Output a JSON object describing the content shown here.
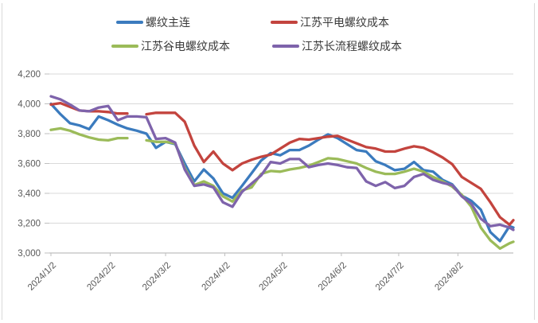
{
  "chart": {
    "background": "#FFFFFF",
    "grid_color": "#D9D9D9",
    "axis_color": "#BFBFBF",
    "frame_color": "#D9D9D9",
    "tick_label_color": "#595959",
    "legend_text_color": "#3A3A3A"
  },
  "chart_data": {
    "type": "line",
    "title": "",
    "xlabel": "",
    "ylabel": "",
    "legend_position": "top",
    "grid": "horizontal",
    "ylim": [
      3000,
      4200
    ],
    "y_ticks": [
      3000,
      3200,
      3400,
      3600,
      3800,
      4000,
      4200
    ],
    "y_tick_labels": [
      "3,000",
      "3,200",
      "3,400",
      "3,600",
      "3,800",
      "4,000",
      "4,200"
    ],
    "x_tick_labels": [
      "2024/1/2",
      "2024/2/2",
      "2024/3/2",
      "2024/4/2",
      "2024/5/2",
      "2024/6/2",
      "2024/7/2",
      "2024/8/2"
    ],
    "x_range": [
      "2024/1/2",
      "2024/8/31"
    ],
    "x": [
      "2024/1/2",
      "2024/1/7",
      "2024/1/12",
      "2024/1/17",
      "2024/1/22",
      "2024/1/27",
      "2024/2/1",
      "2024/2/6",
      "2024/2/11",
      "2024/2/16",
      "2024/2/21",
      "2024/2/26",
      "2024/3/2",
      "2024/3/7",
      "2024/3/12",
      "2024/3/17",
      "2024/3/22",
      "2024/3/27",
      "2024/4/1",
      "2024/4/6",
      "2024/4/11",
      "2024/4/16",
      "2024/4/21",
      "2024/4/26",
      "2024/5/1",
      "2024/5/6",
      "2024/5/11",
      "2024/5/16",
      "2024/5/21",
      "2024/5/26",
      "2024/5/31",
      "2024/6/5",
      "2024/6/10",
      "2024/6/15",
      "2024/6/20",
      "2024/6/25",
      "2024/6/30",
      "2024/7/5",
      "2024/7/10",
      "2024/7/15",
      "2024/7/20",
      "2024/7/25",
      "2024/7/30",
      "2024/8/4",
      "2024/8/9",
      "2024/8/14",
      "2024/8/19",
      "2024/8/24",
      "2024/8/29",
      "2024/8/31"
    ],
    "series": [
      {
        "name": "螺纹主连",
        "color": "#3B7BBE",
        "values": [
          4000,
          3930,
          3870,
          3855,
          3830,
          3915,
          3890,
          3860,
          3835,
          3820,
          3800,
          3705,
          3745,
          3730,
          3600,
          3480,
          3560,
          3500,
          3400,
          3370,
          3450,
          3535,
          3620,
          3670,
          3655,
          3690,
          3690,
          3720,
          3760,
          3795,
          3770,
          3730,
          3690,
          3680,
          3615,
          3590,
          3555,
          3565,
          3610,
          3555,
          3545,
          3490,
          3460,
          3385,
          3350,
          3290,
          3140,
          3080,
          3180,
          3170
        ]
      },
      {
        "name": "江苏平电螺纹成本",
        "color": "#C3443E",
        "values": [
          3995,
          4005,
          3980,
          3955,
          3950,
          3950,
          3945,
          3935,
          3935,
          null,
          3930,
          3940,
          3940,
          3940,
          3880,
          3720,
          3610,
          3680,
          3600,
          3555,
          3600,
          3625,
          3645,
          3660,
          3700,
          3740,
          3765,
          3760,
          3770,
          3780,
          3785,
          3760,
          3735,
          3710,
          3700,
          3680,
          3680,
          3700,
          3715,
          3705,
          3675,
          3640,
          3595,
          3510,
          3470,
          3430,
          3340,
          3240,
          3190,
          3220
        ]
      },
      {
        "name": "江苏谷电螺纹成本",
        "color": "#9BBB59",
        "values": [
          3825,
          3835,
          3820,
          3795,
          3775,
          3760,
          3755,
          3770,
          3770,
          null,
          3755,
          3745,
          3745,
          3735,
          3570,
          3455,
          3480,
          3450,
          3380,
          3345,
          3420,
          3440,
          3530,
          3550,
          3545,
          3560,
          3570,
          3585,
          3610,
          3635,
          3630,
          3615,
          3600,
          3570,
          3545,
          3530,
          3530,
          3545,
          3565,
          3545,
          3510,
          3480,
          3445,
          3390,
          3310,
          3170,
          3085,
          3030,
          3065,
          3075
        ]
      },
      {
        "name": "江苏长流程螺纹成本",
        "color": "#7E63AB",
        "values": [
          4050,
          4030,
          3995,
          3955,
          3950,
          3975,
          3985,
          3890,
          3915,
          3915,
          3910,
          3765,
          3770,
          3740,
          3560,
          3450,
          3460,
          3440,
          3340,
          3310,
          3410,
          3465,
          3520,
          3610,
          3600,
          3630,
          3630,
          3575,
          3590,
          3600,
          3590,
          3575,
          3570,
          3480,
          3450,
          3475,
          3435,
          3450,
          3510,
          3530,
          3490,
          3470,
          3455,
          3380,
          3330,
          3230,
          3180,
          3190,
          3170,
          3155
        ]
      }
    ]
  }
}
